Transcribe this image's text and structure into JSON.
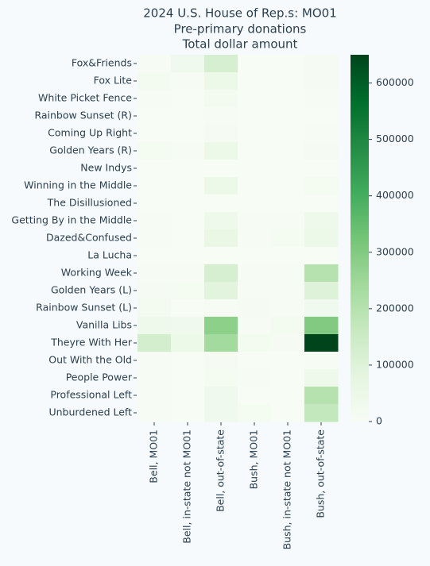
{
  "chart_data": {
    "type": "heatmap",
    "title": [
      "2024 U.S. House of Rep.s: MO01",
      "Pre-primary donations",
      "Total dollar amount"
    ],
    "x_categories": [
      "Bell, MO01",
      "Bell, in-state not MO01",
      "Bell, out-of-state",
      "Bush, MO01",
      "Bush, in-state not MO01",
      "Bush, out-of-state"
    ],
    "y_categories": [
      "Fox&Friends",
      "Fox Lite",
      "White Picket Fence",
      "Rainbow Sunset (R)",
      "Coming Up Right",
      "Golden Years (R)",
      "New Indys",
      "Winning in the Middle",
      "The Disillusioned",
      "Getting By in the Middle",
      "Dazed&Confused",
      "La Lucha",
      "Working Week",
      "Golden Years (L)",
      "Rainbow Sunset (L)",
      "Vanilla Libs",
      "Theyre With Her",
      "Out With the Old",
      "People Power",
      "Professional Left",
      "Unburdened Left"
    ],
    "values": [
      [
        5000,
        30000,
        120000,
        2000,
        2000,
        10000
      ],
      [
        20000,
        5000,
        50000,
        1000,
        1000,
        10000
      ],
      [
        5000,
        2000,
        20000,
        0,
        0,
        5000
      ],
      [
        2000,
        0,
        5000,
        0,
        0,
        2000
      ],
      [
        2000,
        0,
        10000,
        0,
        0,
        5000
      ],
      [
        15000,
        5000,
        50000,
        2000,
        2000,
        10000
      ],
      [
        2000,
        0,
        2000,
        0,
        0,
        2000
      ],
      [
        2000,
        0,
        50000,
        0,
        0,
        15000
      ],
      [
        0,
        0,
        2000,
        0,
        0,
        2000
      ],
      [
        5000,
        2000,
        40000,
        5000,
        5000,
        40000
      ],
      [
        5000,
        2000,
        60000,
        5000,
        15000,
        50000
      ],
      [
        0,
        0,
        2000,
        0,
        0,
        2000
      ],
      [
        5000,
        5000,
        120000,
        5000,
        5000,
        200000
      ],
      [
        10000,
        15000,
        90000,
        5000,
        5000,
        100000
      ],
      [
        20000,
        2000,
        5000,
        10000,
        5000,
        30000
      ],
      [
        40000,
        30000,
        280000,
        5000,
        20000,
        300000
      ],
      [
        130000,
        50000,
        240000,
        20000,
        10000,
        650000
      ],
      [
        5000,
        2000,
        10000,
        2000,
        2000,
        5000
      ],
      [
        5000,
        2000,
        15000,
        5000,
        2000,
        40000
      ],
      [
        5000,
        2000,
        30000,
        2000,
        0,
        200000
      ],
      [
        5000,
        2000,
        30000,
        15000,
        2000,
        170000
      ]
    ],
    "colormap": "Greens",
    "zlim": [
      0,
      650000
    ],
    "zticks": [
      0,
      100000,
      200000,
      300000,
      400000,
      500000,
      600000
    ]
  }
}
